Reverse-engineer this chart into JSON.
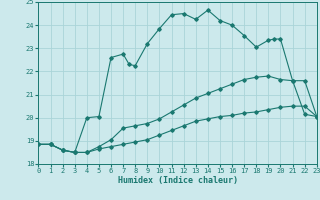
{
  "xlabel": "Humidex (Indice chaleur)",
  "bg_color": "#cce9ec",
  "grid_color": "#aad4d8",
  "line_color": "#1a7870",
  "xlim": [
    0,
    23
  ],
  "ylim": [
    18,
    25
  ],
  "yticks": [
    18,
    19,
    20,
    21,
    22,
    23,
    24,
    25
  ],
  "xticks": [
    0,
    1,
    2,
    3,
    4,
    5,
    6,
    7,
    8,
    9,
    10,
    11,
    12,
    13,
    14,
    15,
    16,
    17,
    18,
    19,
    20,
    21,
    22,
    23
  ],
  "curve1_x": [
    0,
    1,
    2,
    3,
    4,
    5,
    6,
    7,
    7.5,
    8,
    9,
    10,
    11,
    12,
    13,
    14,
    15,
    16,
    17,
    18,
    19,
    19.5,
    20,
    21,
    22,
    23
  ],
  "curve1_y": [
    18.85,
    18.85,
    18.6,
    18.5,
    20.0,
    20.05,
    22.6,
    22.75,
    22.3,
    22.25,
    23.2,
    23.85,
    24.45,
    24.5,
    24.25,
    24.65,
    24.2,
    24.0,
    23.55,
    23.05,
    23.35,
    23.4,
    23.4,
    21.6,
    21.6,
    20.05
  ],
  "curve2_x": [
    0,
    1,
    2,
    3,
    4,
    5,
    6,
    7,
    8,
    9,
    10,
    11,
    12,
    13,
    14,
    15,
    16,
    17,
    18,
    19,
    20,
    21,
    22,
    23
  ],
  "curve2_y": [
    18.85,
    18.85,
    18.6,
    18.5,
    18.5,
    18.75,
    19.05,
    19.55,
    19.65,
    19.75,
    19.95,
    20.25,
    20.55,
    20.85,
    21.05,
    21.25,
    21.45,
    21.65,
    21.75,
    21.8,
    21.65,
    21.6,
    20.15,
    20.05
  ],
  "curve3_x": [
    0,
    1,
    2,
    3,
    4,
    5,
    6,
    7,
    8,
    9,
    10,
    11,
    12,
    13,
    14,
    15,
    16,
    17,
    18,
    19,
    20,
    21,
    22,
    23
  ],
  "curve3_y": [
    18.85,
    18.85,
    18.6,
    18.5,
    18.5,
    18.65,
    18.75,
    18.85,
    18.95,
    19.05,
    19.25,
    19.45,
    19.65,
    19.85,
    19.95,
    20.05,
    20.1,
    20.2,
    20.25,
    20.35,
    20.45,
    20.5,
    20.5,
    20.05
  ]
}
